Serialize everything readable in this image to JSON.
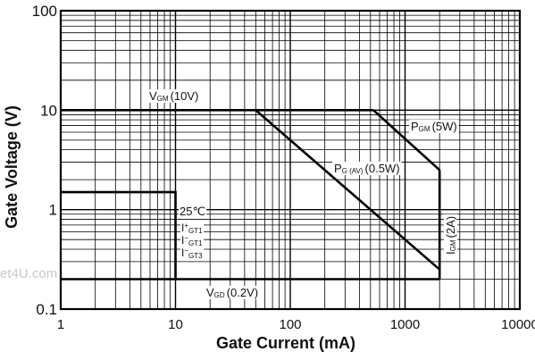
{
  "chart_data": {
    "type": "line",
    "xscale": "log",
    "yscale": "log",
    "xlim": [
      1,
      10000
    ],
    "ylim": [
      0.1,
      100
    ],
    "xlabel": "Gate Current (mA)",
    "ylabel": "Gate Voltage (V)",
    "x_tick_labels": [
      "1",
      "10",
      "100",
      "1000",
      "10000"
    ],
    "y_tick_labels": [
      "0.1",
      "1",
      "10",
      "100"
    ],
    "grid": true,
    "series": [
      {
        "name": "VGM (10V)",
        "label_main": "V",
        "label_sub": "GM",
        "label_rest": "(10V)",
        "x": [
          1,
          530
        ],
        "y": [
          10,
          10
        ]
      },
      {
        "name": "PGM (5W)",
        "label_main": "P",
        "label_sub": "GM",
        "label_rest": "(5W)",
        "x": [
          530,
          2000
        ],
        "y": [
          10,
          2.5
        ]
      },
      {
        "name": "PG(AV) (0.5W)",
        "label_main": "P",
        "label_sub": "G (AV)",
        "label_rest": "(0.5W)",
        "x": [
          50,
          2000
        ],
        "y": [
          10,
          0.25
        ]
      },
      {
        "name": "IGM (2A)",
        "label_main": "I",
        "label_sub": "GM",
        "label_rest": "(2A)",
        "x": [
          2000,
          2000
        ],
        "y": [
          0.2,
          2.5
        ]
      },
      {
        "name": "VGD (0.2V)",
        "label_main": "V",
        "label_sub": "GD",
        "label_rest": "(0.2V)",
        "x": [
          1,
          2000
        ],
        "y": [
          0.2,
          0.2
        ]
      },
      {
        "name": "25°C region",
        "x": [
          1,
          10,
          10
        ],
        "y": [
          1.5,
          1.5,
          0.2
        ]
      }
    ],
    "annotations": {
      "temp": "25℃",
      "gate_labels": [
        {
          "sup": "+",
          "main": "I",
          "sub": "GT1"
        },
        {
          "sup": "−",
          "main": "I",
          "sub": "GT1"
        },
        {
          "sup": "−",
          "main": "I",
          "sub": "GT3"
        }
      ]
    },
    "watermark": "et4U.com"
  }
}
